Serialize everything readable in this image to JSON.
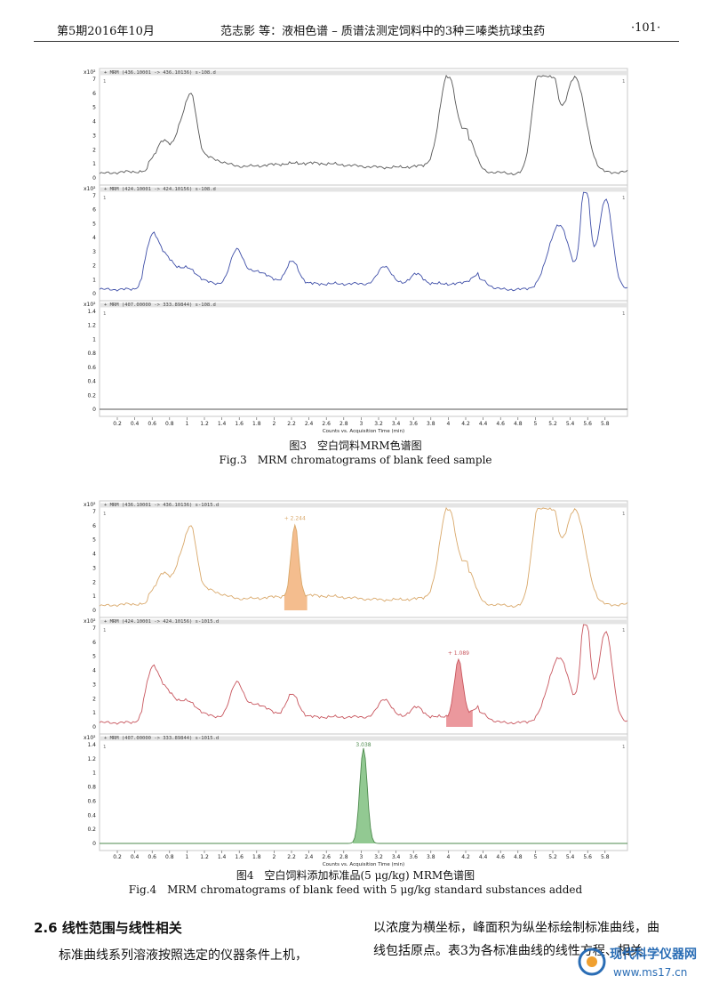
{
  "header": {
    "issue": "第5期2016年10月",
    "running_title": "范志影 等：液相色谱 – 质谱法测定饲料中的3种三嗪类抗球虫药",
    "page_number": "·101·"
  },
  "common": {
    "xaxis_label": "Counts vs. Acquisition Time (min)",
    "x_ticks": [
      "0.2",
      "0.4",
      "0.6",
      "0.8",
      "1",
      "1.2",
      "1.4",
      "1.6",
      "1.8",
      "2",
      "2.2",
      "2.4",
      "2.6",
      "2.8",
      "3",
      "3.2",
      "3.4",
      "3.6",
      "3.8",
      "4",
      "4.2",
      "4.4",
      "4.6",
      "4.8",
      "5",
      "5.2",
      "5.4",
      "5.6",
      "5.8"
    ]
  },
  "figure3": {
    "caption_cn": "图3　空白饲料MRM色谱图",
    "caption_en": "Fig.3　MRM chromatograms of blank feed sample",
    "panels": [
      {
        "scale": "x10²",
        "trace": "+ MRM (436.10001 -> 436.10136) s-108.d",
        "index": "1",
        "color": "#555555",
        "y_ticks": [
          "0",
          "1",
          "2",
          "3",
          "4",
          "5",
          "6",
          "7"
        ]
      },
      {
        "scale": "x10²",
        "trace": "+ MRM (424.10001 -> 424.10156) s-108.d",
        "index": "1",
        "color": "#3f4fa8",
        "y_ticks": [
          "0",
          "1",
          "2",
          "3",
          "4",
          "5",
          "6",
          "7"
        ]
      },
      {
        "scale": "x10²",
        "trace": "+ MRM (407.00000 -> 333.89844) s-108.d",
        "index": "1",
        "color": "#555555",
        "y_ticks": [
          "0",
          "0.2",
          "0.4",
          "0.6",
          "0.8",
          "1",
          "1.2",
          "1.4"
        ]
      }
    ]
  },
  "figure4": {
    "caption_cn": "图4　空白饲料添加标准品(5 μg/kg) MRM色谱图",
    "caption_en": "Fig.4　MRM chromatograms of blank feed with 5 μg/kg standard substances added",
    "panels": [
      {
        "scale": "x10²",
        "trace": "+ MRM (436.10001 -> 436.10136) s-1015.d",
        "index": "1",
        "color": "#d9a86a",
        "fill": "#f2b27a",
        "peak_label": "+ 2.244",
        "y_ticks": [
          "0",
          "1",
          "2",
          "3",
          "4",
          "5",
          "6",
          "7"
        ]
      },
      {
        "scale": "x10²",
        "trace": "+ MRM (424.10001 -> 424.10156) s-1015.d",
        "index": "1",
        "color": "#c8565e",
        "fill": "#e8868c",
        "peak_label": "+ 1.089",
        "y_ticks": [
          "0",
          "1",
          "2",
          "3",
          "4",
          "5",
          "6",
          "7"
        ]
      },
      {
        "scale": "x10²",
        "trace": "+ MRM (407.00000 -> 333.89844) s-1015.d",
        "index": "1",
        "color": "#4d8a4d",
        "fill": "#7fbf7f",
        "peak_label": "3.038",
        "y_ticks": [
          "0",
          "0.2",
          "0.4",
          "0.6",
          "0.8",
          "1",
          "1.2",
          "1.4"
        ]
      }
    ]
  },
  "body_text": {
    "section_heading": "2.6 线性范围与线性相关",
    "para_left": "标准曲线系列溶液按照选定的仪器条件上机，",
    "para_right_line1": "以浓度为横坐标，峰面积为纵坐标绘制标准曲线，曲",
    "para_right_line2": "线包括原点。表3为各标准曲线的线性方程、相关"
  },
  "watermark": {
    "text_cn": "现代科学仪器网",
    "url": "www.ms17.cn"
  }
}
